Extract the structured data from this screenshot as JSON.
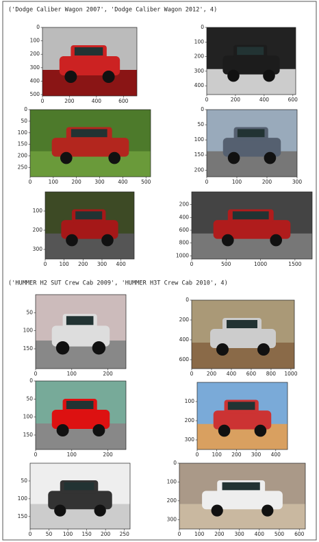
{
  "groups": [
    {
      "header": "('Dodge Caliber Wagon 2007', 'Dodge Caliber Wagon 2012', 4)",
      "plots": [
        {
          "xticks": [
            0,
            200,
            400,
            600
          ],
          "yticks": [
            0,
            100,
            200,
            300,
            400,
            500
          ]
        },
        {
          "xticks": [
            0,
            200,
            400,
            600
          ],
          "yticks": [
            0,
            100,
            200,
            300,
            400
          ]
        },
        {
          "xticks": [
            0,
            100,
            200,
            300,
            400,
            500
          ],
          "yticks": [
            0,
            50,
            100,
            150,
            200,
            250
          ]
        },
        {
          "xticks": [
            0,
            100,
            200,
            300
          ],
          "yticks": [
            0,
            50,
            100,
            150,
            200
          ]
        },
        {
          "xticks": [
            0,
            100,
            200,
            300,
            400
          ],
          "yticks": [
            100,
            200,
            300
          ]
        },
        {
          "xticks": [
            0,
            500,
            1000,
            1500
          ],
          "yticks": [
            200,
            400,
            600,
            800,
            1000
          ]
        }
      ]
    },
    {
      "header": "('HUMMER H2 SUT Crew Cab 2009', 'HUMMER H3T Crew Cab 2010', 4)",
      "plots": [
        {
          "xticks": [
            0,
            100,
            200
          ],
          "yticks": [
            50,
            100,
            150
          ]
        },
        {
          "xticks": [
            0,
            200,
            400,
            600,
            800,
            1000
          ],
          "yticks": [
            0,
            200,
            400,
            600
          ]
        },
        {
          "xticks": [
            0,
            100,
            200
          ],
          "yticks": [
            0,
            50,
            100,
            150
          ]
        },
        {
          "xticks": [
            0,
            100,
            200,
            300,
            400
          ],
          "yticks": [
            100,
            200,
            300
          ]
        },
        {
          "xticks": [
            0,
            50,
            100,
            150,
            200,
            250
          ],
          "yticks": [
            50,
            100,
            150
          ]
        },
        {
          "xticks": [
            0,
            100,
            200,
            300,
            400,
            500,
            600
          ],
          "yticks": [
            0,
            100,
            200,
            300
          ]
        }
      ]
    }
  ]
}
